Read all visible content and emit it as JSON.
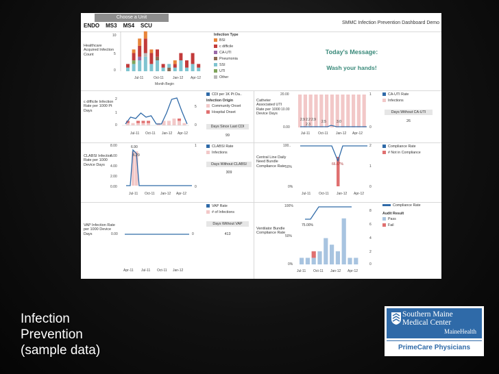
{
  "chooser": {
    "label": "Choose a Unit"
  },
  "units": [
    "ENDO",
    "MS3",
    "MS4",
    "SCU"
  ],
  "dashboard_title": "SMMC Infection Prevention Dashboard Demo",
  "message": {
    "heading": "Today's Message:",
    "body": "Wash your hands!"
  },
  "caption": {
    "line1": "Infection",
    "line2": "Prevention",
    "line3": "(sample data)"
  },
  "logo": {
    "line1": "Southern Maine",
    "line2": "Medical Center",
    "line3": "MaineHealth",
    "line4": "PrimeCare Physicians"
  },
  "colors": {
    "bsi": "#e8853a",
    "cdiff": "#c23b3b",
    "cauti": "#9a6aa8",
    "pneumonia": "#8b6a52",
    "ssi": "#7fc4d0",
    "uti": "#7fa45a",
    "other": "#b8b8b8",
    "line": "#2f6aa8",
    "pink": "#f2c8c8",
    "salmon": "#e07070",
    "lightblue": "#a8c4e0"
  },
  "panels": {
    "hai": {
      "label": "Healthcare Acquired Infection Count",
      "xlabel": "Month Begin",
      "yticks": [
        "10",
        "5",
        "0"
      ],
      "xticks": [
        "Jul-11",
        "Oct-11",
        "Jan-12",
        "Apr-12"
      ],
      "legend_title": "Infection Type",
      "legend": [
        "BSI",
        "c difficile",
        "CA-UTI",
        "Pneumonia",
        "SSI",
        "UTI",
        "Other"
      ]
    },
    "cdiff": {
      "label": "c difficile Infection Rate per 1000 Pt Days",
      "yticks": [
        "2",
        "1",
        "0"
      ],
      "y2ticks": [
        "5",
        "0"
      ],
      "xticks": [
        "Jul-11",
        "Oct-11",
        "Jan-12",
        "Apr-12"
      ],
      "legend_line": "CDI per 1K Pt Da..",
      "origin_title": "Infection Origin",
      "origin": [
        "Community Onset",
        "Hospital Onset"
      ],
      "days_label": "Days Since Last CDI",
      "days_value": "99"
    },
    "cauti": {
      "label": "Catheter Associated UTI Rate per 1000 Device Days",
      "yticks": [
        "20.00",
        "10.00",
        "0.00"
      ],
      "y2ticks": [
        "1",
        "0"
      ],
      "xticks": [
        "Jul-11",
        "Oct-11",
        "Jan-12",
        "Apr-12"
      ],
      "data_labels": [
        "2.9",
        "2.2",
        "2.9",
        "2.3",
        "2.5",
        "3.0"
      ],
      "legend": [
        "CA-UTI Rate",
        "Infections"
      ],
      "days_label": "Days Without CA-UTI",
      "days_value": "26"
    },
    "clabsi": {
      "label": "CLABSI Infection Rate per 1000 Device Days",
      "yticks": [
        "8.00",
        "6.00",
        "4.00",
        "2.00",
        "0.00"
      ],
      "y2ticks": [
        "1",
        "0"
      ],
      "xticks": [
        "Jul-11",
        "Oct-11",
        "Jan-12",
        "Apr-12"
      ],
      "data_labels": [
        "6.90",
        "6.29"
      ],
      "legend": [
        "CLABSI Rate",
        "Infections"
      ],
      "days_label": "Days Without CLABSI",
      "days_value": "309"
    },
    "central": {
      "label": "Central Line Daily Need Bundle Compliance Rate",
      "yticks": [
        "100..",
        "50%",
        "0%"
      ],
      "y2ticks": [
        "2",
        "1",
        "0"
      ],
      "xticks": [
        "Jul-11",
        "Oct-11",
        "Jan-12",
        "Apr-12"
      ],
      "data_label": "66.67%",
      "legend": [
        "Compliance Rate",
        "# Not in Compliance"
      ]
    },
    "vap": {
      "label": "VAP Infection Rate per 1000 Device Days",
      "ytick": "0.00",
      "y2tick": "0",
      "xticks": [
        "Apr-11",
        "Jul-11",
        "Oct-11",
        "Jan-12",
        "Apr-12"
      ],
      "legend": [
        "VAP Rate",
        "# of Infections"
      ],
      "days_label": "Days Without VAP",
      "days_value": "413"
    },
    "ventilator": {
      "label": "Ventilator Bundle Compliance Rate",
      "yticks": [
        "100%",
        "50%",
        "0%"
      ],
      "y2ticks": [
        "8",
        "6",
        "4",
        "2",
        "0"
      ],
      "xticks": [
        "Jul-11",
        "Oct-11",
        "Jan-12",
        "Apr-12"
      ],
      "data_label": "75.00%",
      "legend_line": "Compliance Rate",
      "audit_title": "Audit Result",
      "audit": [
        "Pass",
        "Fail"
      ]
    }
  }
}
